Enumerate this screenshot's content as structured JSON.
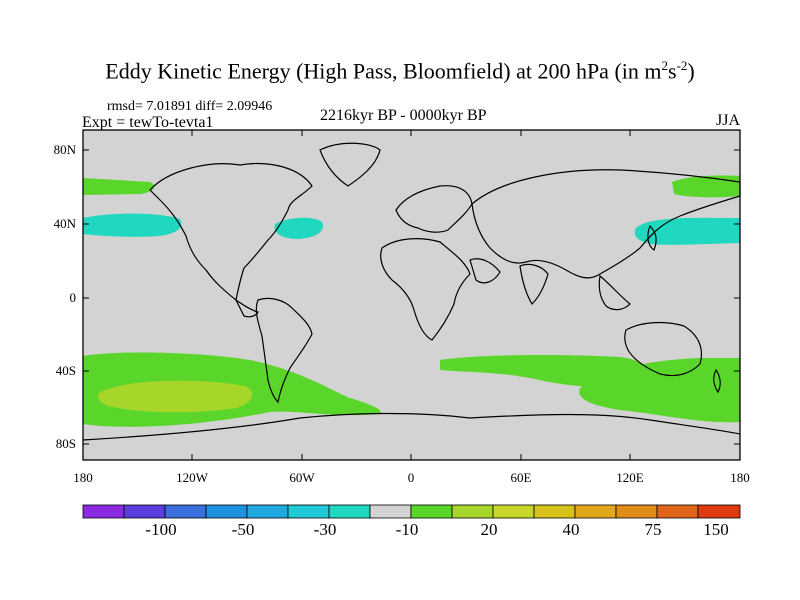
{
  "title": "Eddy Kinetic Energy (High Pass, Bloomfield) at 200 hPa (in m",
  "title_unit_sup1": "2",
  "title_unit_mid": "s",
  "title_unit_sup2": "-2",
  "title_close": ")",
  "stats": "rmsd= 7.01891 diff= 2.09946",
  "experiment": "Expt = tewTo-tevta1",
  "period": "2216kyr BP - 0000kyr BP",
  "season": "JJA",
  "y_axis": [
    "80N",
    "40N",
    "0",
    "40S",
    "80S"
  ],
  "x_axis": [
    "180",
    "120W",
    "60W",
    "0",
    "60E",
    "120E",
    "180"
  ],
  "colorbar": {
    "colors": [
      "#8a2be2",
      "#5a3ddc",
      "#3a6fdc",
      "#1e90e0",
      "#20a8e0",
      "#20c8d8",
      "#20d8c0",
      "#d3d3d3",
      "#5ad62a",
      "#a6d62a",
      "#c8d62a",
      "#d6c21a",
      "#e0a81a",
      "#e08c1a",
      "#e0641a",
      "#e03a10"
    ],
    "labels": [
      "-100",
      "-50",
      "-30",
      "-10",
      "20",
      "40",
      "75",
      "150"
    ]
  },
  "colors": {
    "background_field": "#d3d3d3",
    "cyan_anomaly": "#20d8c0",
    "green_anomaly": "#5ad62a",
    "yellowgreen_anomaly": "#a6d62a"
  }
}
